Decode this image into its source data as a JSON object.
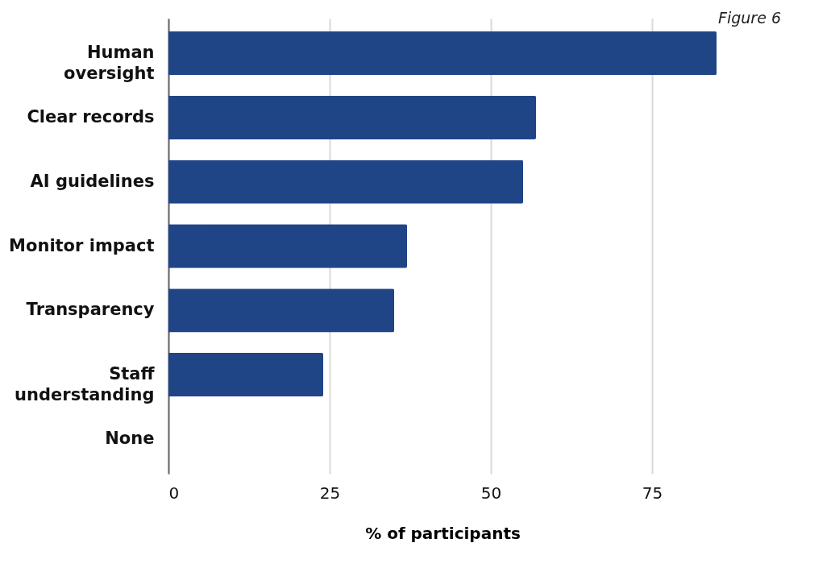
{
  "chart_data": {
    "type": "bar",
    "orientation": "horizontal",
    "categories": [
      "Human oversight",
      "Clear records",
      "AI guidelines",
      "Monitor impact",
      "Transparency",
      "Staff understanding",
      "None"
    ],
    "values": [
      85,
      57,
      55,
      37,
      35,
      24,
      0
    ],
    "color": "#1f4587",
    "xlabel": "% of participants",
    "annotations": [
      "Figure 6"
    ],
    "xlim": [
      0,
      85
    ],
    "xticks": [
      0,
      25,
      50,
      75
    ],
    "grid": "x"
  }
}
